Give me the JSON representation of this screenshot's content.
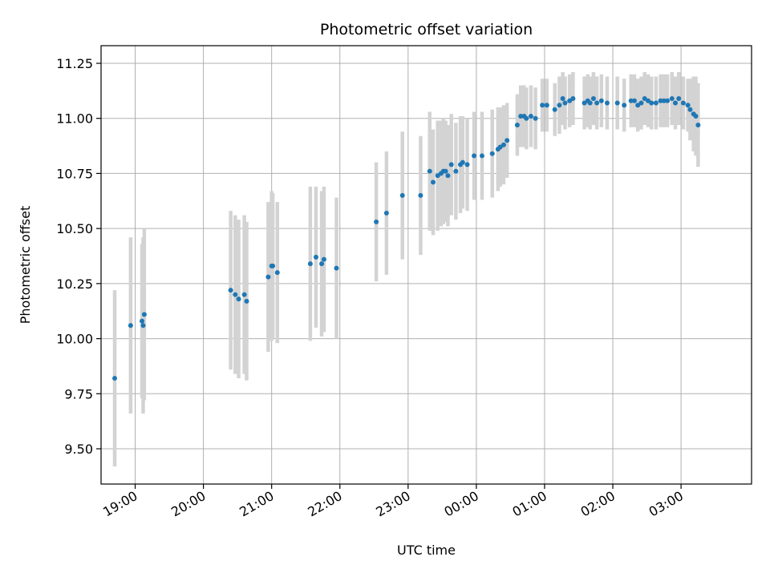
{
  "chart_data": {
    "type": "scatter",
    "title": "Photometric offset variation",
    "xlabel": "UTC time",
    "ylabel": "Photometric offset",
    "x_ticks": [
      "19:00",
      "20:00",
      "21:00",
      "22:00",
      "23:00",
      "00:00",
      "01:00",
      "02:00",
      "03:00"
    ],
    "y_ticks": [
      "9.50",
      "9.75",
      "10.00",
      "10.25",
      "10.50",
      "10.75",
      "11.00",
      "11.25"
    ],
    "xlim": [
      "18:30",
      "04:02"
    ],
    "ylim": [
      9.34,
      11.33
    ],
    "grid": true,
    "colors": {
      "marker": "#1f77b4",
      "errorbar": "#d3d3d3"
    },
    "series": [
      {
        "x": [
          "18:42",
          "18:56",
          "19:06",
          "19:07",
          "19:08",
          "20:24",
          "20:28",
          "20:31",
          "20:36",
          "20:38",
          "20:57",
          "21:00",
          "21:01",
          "21:05",
          "21:34",
          "21:39",
          "21:44",
          "21:46",
          "21:57",
          "22:32",
          "22:41",
          "22:55",
          "23:11",
          "23:19",
          "23:22",
          "23:26",
          "23:29",
          "23:31",
          "23:33",
          "23:35",
          "23:38",
          "23:42",
          "23:46",
          "23:48",
          "23:52",
          "23:58",
          "00:05",
          "00:14",
          "00:19",
          "00:21",
          "00:24",
          "00:27",
          "00:36",
          "00:39",
          "00:42",
          "00:44",
          "00:48",
          "00:52",
          "00:58",
          "01:02",
          "01:09",
          "01:13",
          "01:16",
          "01:18",
          "01:22",
          "01:25",
          "01:35",
          "01:38",
          "01:40",
          "01:43",
          "01:46",
          "01:50",
          "01:55",
          "02:04",
          "02:10",
          "02:16",
          "02:19",
          "02:22",
          "02:25",
          "02:28",
          "02:31",
          "02:34",
          "02:38",
          "02:42",
          "02:45",
          "02:48",
          "02:52",
          "02:55",
          "02:58",
          "03:02",
          "03:06",
          "03:08",
          "03:11",
          "03:13",
          "03:15"
        ],
        "y": [
          9.82,
          10.06,
          10.08,
          10.06,
          10.11,
          10.22,
          10.2,
          10.18,
          10.2,
          10.17,
          10.28,
          10.33,
          10.33,
          10.3,
          10.34,
          10.37,
          10.34,
          10.36,
          10.32,
          10.53,
          10.57,
          10.65,
          10.65,
          10.76,
          10.71,
          10.74,
          10.75,
          10.76,
          10.76,
          10.74,
          10.79,
          10.76,
          10.79,
          10.8,
          10.79,
          10.83,
          10.83,
          10.84,
          10.86,
          10.87,
          10.88,
          10.9,
          10.97,
          11.01,
          11.01,
          11.0,
          11.01,
          11.0,
          11.06,
          11.06,
          11.04,
          11.06,
          11.09,
          11.07,
          11.08,
          11.09,
          11.07,
          11.08,
          11.07,
          11.09,
          11.07,
          11.08,
          11.07,
          11.07,
          11.06,
          11.08,
          11.08,
          11.06,
          11.07,
          11.09,
          11.08,
          11.07,
          11.07,
          11.08,
          11.08,
          11.08,
          11.09,
          11.07,
          11.09,
          11.07,
          11.06,
          11.04,
          11.02,
          11.01,
          10.97
        ],
        "err": [
          0.4,
          0.4,
          0.35,
          0.4,
          0.39,
          0.36,
          0.36,
          0.36,
          0.36,
          0.36,
          0.34,
          0.34,
          0.33,
          0.32,
          0.35,
          0.32,
          0.33,
          0.33,
          0.32,
          0.27,
          0.28,
          0.29,
          0.27,
          0.27,
          0.24,
          0.25,
          0.24,
          0.24,
          0.23,
          0.23,
          0.23,
          0.22,
          0.22,
          0.21,
          0.21,
          0.2,
          0.2,
          0.2,
          0.19,
          0.18,
          0.18,
          0.17,
          0.14,
          0.14,
          0.14,
          0.14,
          0.14,
          0.14,
          0.12,
          0.12,
          0.12,
          0.13,
          0.12,
          0.12,
          0.12,
          0.12,
          0.12,
          0.12,
          0.12,
          0.12,
          0.12,
          0.12,
          0.12,
          0.12,
          0.12,
          0.12,
          0.12,
          0.12,
          0.12,
          0.12,
          0.12,
          0.12,
          0.12,
          0.12,
          0.12,
          0.12,
          0.12,
          0.12,
          0.12,
          0.12,
          0.12,
          0.14,
          0.17,
          0.18,
          0.19
        ]
      }
    ]
  }
}
